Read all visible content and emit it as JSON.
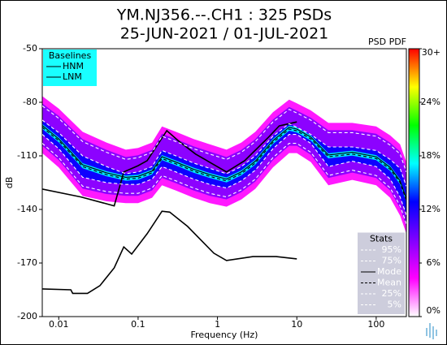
{
  "chart_data": {
    "type": "line",
    "title": "YM.NJ356.--.CH1 : 325 PSDs",
    "subtitle": "25-JUN-2021 / 01-JUL-2021",
    "xlabel": "Frequency (Hz)",
    "ylabel": "dB",
    "log_x": true,
    "xlim": [
      0.0062,
      240
    ],
    "xticks": [
      0.01,
      0.1,
      1,
      10,
      100
    ],
    "ylim": [
      -200,
      -50
    ],
    "yticks": [
      -200,
      -170,
      -140,
      -110,
      -80,
      -50
    ],
    "legend_groups": [
      {
        "title": "Baselines",
        "corner": "upper left",
        "color": "#00ffff"
      },
      {
        "title": "Stats",
        "corner": "lower right",
        "color": "#c8c8d8"
      }
    ],
    "colorbar": {
      "label": "PSD PDF",
      "lim": [
        0,
        30
      ],
      "colormap": [
        "#ffffff",
        "#ff00ff",
        "#8000ff",
        "#0000ff",
        "#00ffff",
        "#00ff00",
        "#ffff00",
        "#ff0000"
      ],
      "ticks": [
        {
          "value": 0,
          "label": "0%"
        },
        {
          "value": 6,
          "label": "6%"
        },
        {
          "value": 12,
          "label": "12%"
        },
        {
          "value": 18,
          "label": "18%"
        },
        {
          "value": 24,
          "label": "24%"
        },
        {
          "value": 30,
          "label": "30+"
        }
      ]
    },
    "series": [
      {
        "name": "HNM",
        "group": 0,
        "color": "#000000",
        "style": "solid",
        "x": [
          0.0062,
          0.019,
          0.05,
          0.066,
          0.1,
          0.13,
          0.23,
          0.33,
          0.53,
          1.3,
          2.2,
          4.3,
          6,
          10
        ],
        "values": [
          -128.6,
          -133,
          -138,
          -119,
          -115.5,
          -112.7,
          -95.9,
          -102,
          -109,
          -119,
          -112.7,
          -100,
          -93.2,
          -91
        ]
      },
      {
        "name": "LNM",
        "group": 0,
        "color": "#000000",
        "style": "solid",
        "x": [
          0.0062,
          0.0142,
          0.015,
          0.023,
          0.033,
          0.05,
          0.066,
          0.083,
          0.13,
          0.2,
          0.25,
          0.42,
          0.9,
          1.3,
          2.8,
          5.5,
          10
        ],
        "values": [
          -184.5,
          -185,
          -187,
          -187,
          -182.7,
          -172.7,
          -161,
          -165,
          -153.6,
          -141,
          -141.5,
          -149.5,
          -164.5,
          -168.6,
          -166.4,
          -166.4,
          -167.7
        ]
      },
      {
        "name": "95%",
        "group": 1,
        "color": "#ffffff",
        "style": "dashed",
        "x": [
          0.0062,
          0.01,
          0.02,
          0.04,
          0.07,
          0.1,
          0.15,
          0.2,
          0.3,
          0.5,
          0.8,
          1.3,
          2,
          3,
          5,
          8,
          10,
          15,
          25,
          50,
          100,
          150,
          200,
          240
        ],
        "values": [
          -82,
          -89,
          -102,
          -108,
          -112,
          -111,
          -108,
          -99,
          -102,
          -106,
          -109,
          -112,
          -108,
          -102,
          -91,
          -84,
          -86,
          -90,
          -97,
          -97,
          -99,
          -104,
          -109,
          -119
        ]
      },
      {
        "name": "75%",
        "group": 1,
        "color": "#ffffff",
        "style": "dashed",
        "x": [
          0.0062,
          0.01,
          0.02,
          0.04,
          0.07,
          0.1,
          0.15,
          0.2,
          0.3,
          0.5,
          0.8,
          1.3,
          2,
          3,
          5,
          8,
          10,
          15,
          25,
          50,
          100,
          150,
          200,
          240
        ],
        "values": [
          -90,
          -97,
          -110,
          -116,
          -120,
          -119,
          -116,
          -107,
          -110,
          -114,
          -117,
          -120,
          -116,
          -110,
          -99,
          -92,
          -94,
          -98,
          -105,
          -105,
          -107,
          -112,
          -117,
          -127
        ]
      },
      {
        "name": "Mode",
        "group": 1,
        "color": "#000000",
        "style": "solid",
        "x": [
          0.0062,
          0.01,
          0.02,
          0.04,
          0.07,
          0.1,
          0.15,
          0.2,
          0.3,
          0.5,
          0.8,
          1.3,
          2,
          3,
          5,
          8,
          10,
          15,
          25,
          50,
          100,
          150,
          200,
          240
        ],
        "values": [
          -93,
          -100.5,
          -115,
          -119.5,
          -122,
          -121.5,
          -118.5,
          -110.5,
          -113.5,
          -117.5,
          -120.5,
          -123,
          -119,
          -113,
          -101.5,
          -94,
          -95,
          -99.5,
          -109.5,
          -108,
          -110.5,
          -116.5,
          -124,
          -134
        ]
      },
      {
        "name": "Mean",
        "group": 1,
        "color": "#000000",
        "style": "dashed",
        "x": [
          0.0062,
          0.01,
          0.02,
          0.04,
          0.07,
          0.1,
          0.15,
          0.2,
          0.3,
          0.5,
          0.8,
          1.3,
          2,
          3,
          5,
          8,
          10,
          15,
          25,
          50,
          100,
          150,
          200,
          240
        ],
        "values": [
          -94,
          -101.5,
          -116,
          -120.5,
          -123,
          -122.5,
          -119.5,
          -111.5,
          -114.5,
          -118.5,
          -121.5,
          -124,
          -120,
          -114,
          -102.5,
          -95,
          -96,
          -100.5,
          -110.5,
          -109,
          -111.5,
          -117.5,
          -125,
          -135
        ]
      },
      {
        "name": "25%",
        "group": 1,
        "color": "#ffffff",
        "style": "dashed",
        "x": [
          0.0062,
          0.01,
          0.02,
          0.04,
          0.07,
          0.1,
          0.15,
          0.2,
          0.3,
          0.5,
          0.8,
          1.3,
          2,
          3,
          5,
          8,
          10,
          15,
          25,
          50,
          100,
          150,
          200,
          240
        ],
        "values": [
          -98,
          -106,
          -122,
          -125,
          -126,
          -126,
          -123,
          -116,
          -119,
          -123,
          -126,
          -128,
          -124,
          -118,
          -106,
          -98,
          -98,
          -103,
          -116,
          -113,
          -116,
          -123,
          -133,
          -143
        ]
      },
      {
        "name": "5%",
        "group": 1,
        "color": "#ffffff",
        "style": "dashed",
        "x": [
          0.0062,
          0.01,
          0.02,
          0.04,
          0.07,
          0.1,
          0.15,
          0.2,
          0.3,
          0.5,
          0.8,
          1.3,
          2,
          3,
          5,
          8,
          10,
          15,
          25,
          50,
          100,
          150,
          200,
          240
        ],
        "values": [
          -103,
          -111,
          -127,
          -130,
          -131,
          -131,
          -128,
          -121,
          -124,
          -128,
          -131,
          -133,
          -129,
          -123,
          -111,
          -103,
          -103,
          -108,
          -121,
          -118,
          -121,
          -128,
          -138,
          -148
        ]
      }
    ]
  }
}
